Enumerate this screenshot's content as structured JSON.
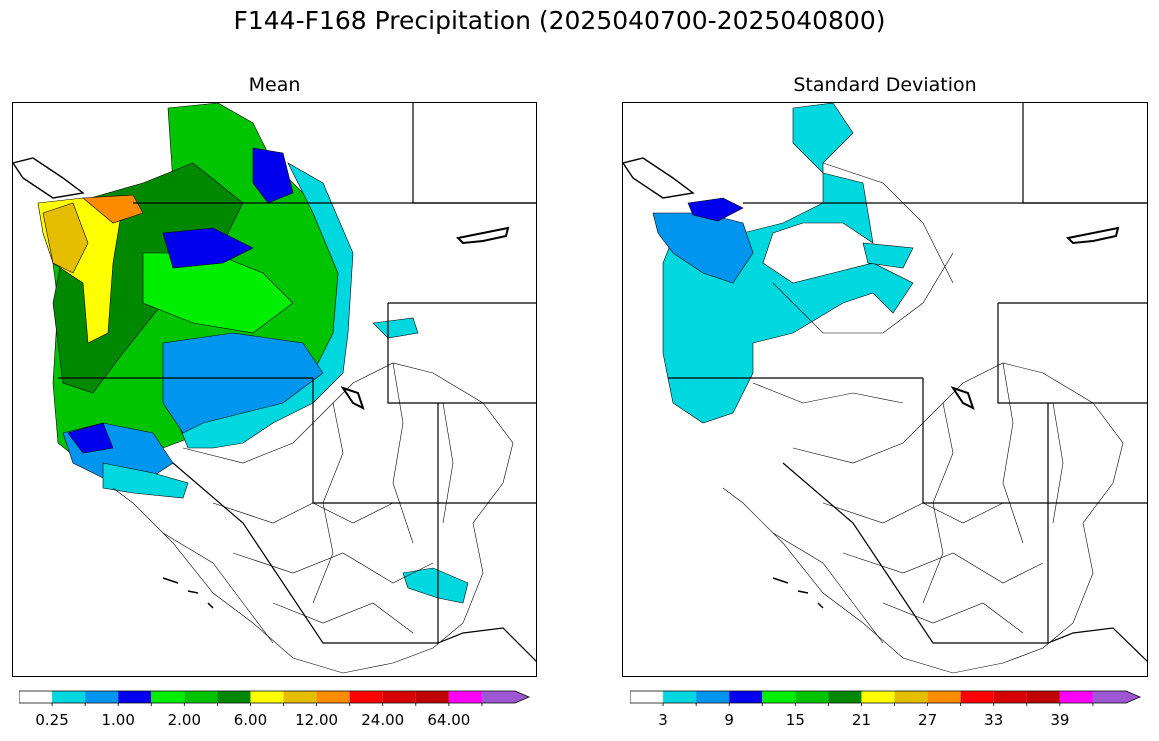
{
  "figure": {
    "title": "F144-F168 Precipitation (2025040700-2025040800)"
  },
  "panels": {
    "mean": {
      "title": "Mean",
      "colorbar": {
        "tick_labels": [
          "0.25",
          "1.00",
          "2.00",
          "6.00",
          "12.00",
          "24.00",
          "64.00"
        ],
        "colors": [
          "#ffffff",
          "#00d8e0",
          "#0096f0",
          "#0000ee",
          "#00ee00",
          "#00c400",
          "#008800",
          "#ffff00",
          "#e6be00",
          "#ff8c00",
          "#ff0000",
          "#d60000",
          "#c00000",
          "#ff00ff",
          "#9e57d2"
        ]
      }
    },
    "std": {
      "title": "Standard Deviation",
      "colorbar": {
        "tick_labels": [
          "3",
          "9",
          "15",
          "21",
          "27",
          "33",
          "39"
        ],
        "colors": [
          "#ffffff",
          "#00d8e0",
          "#0096f0",
          "#0000ee",
          "#00ee00",
          "#00c400",
          "#008800",
          "#ffff00",
          "#e6be00",
          "#ff8c00",
          "#ff0000",
          "#d60000",
          "#c00000",
          "#ff00ff",
          "#9e57d2"
        ]
      }
    }
  }
}
